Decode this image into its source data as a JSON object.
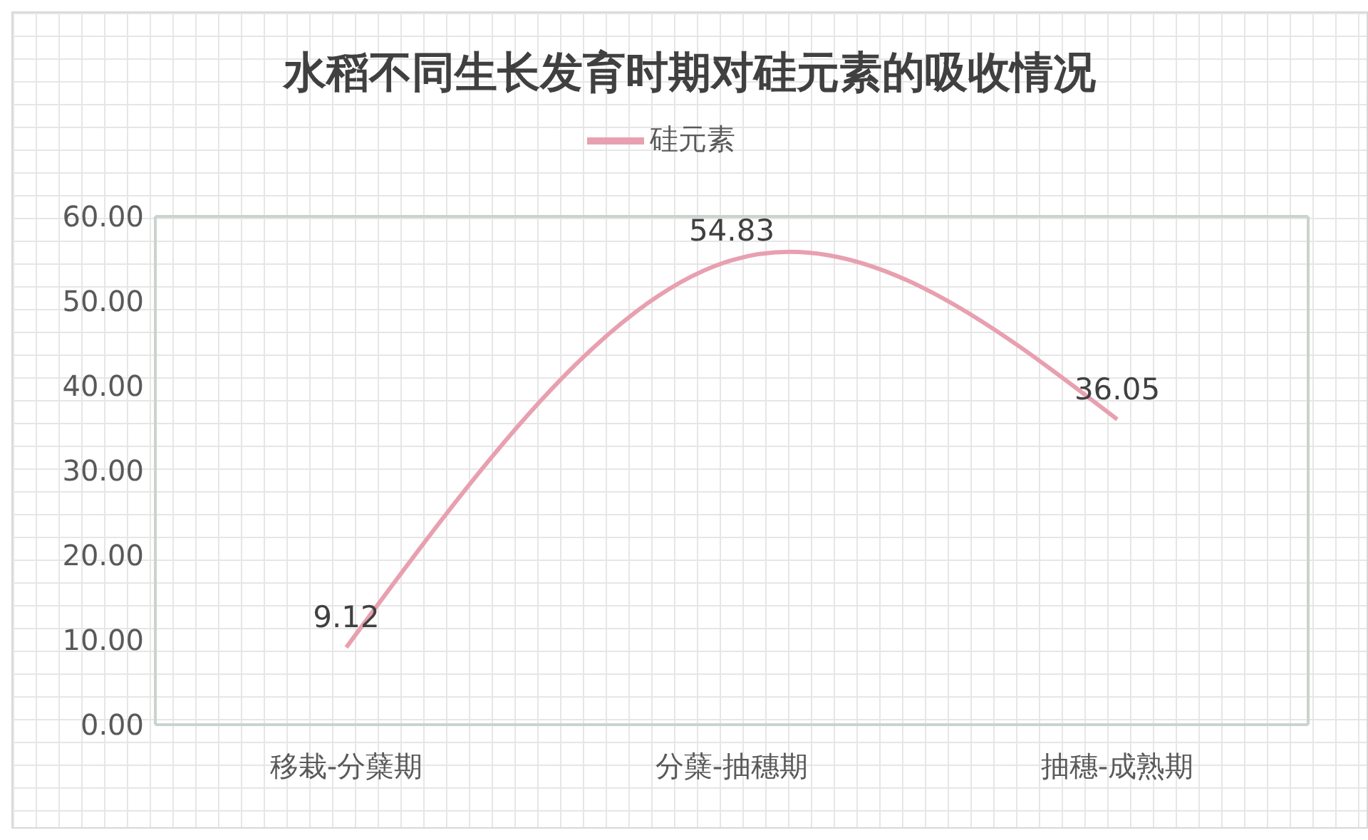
{
  "chart_data": {
    "type": "line",
    "title": "水稻不同生长发育时期对硅元素的吸收情况",
    "categories": [
      "移栽-分蘖期",
      "分蘖-抽穗期",
      "抽穗-成熟期"
    ],
    "series": [
      {
        "name": "硅元素",
        "color": "#e8a0b0",
        "values": [
          9.12,
          54.83,
          36.05
        ]
      }
    ],
    "ylim": [
      0,
      60
    ],
    "yticks": [
      {
        "value": 0,
        "label": "0.00"
      },
      {
        "value": 10,
        "label": "10.00"
      },
      {
        "value": 20,
        "label": "20.00"
      },
      {
        "value": 30,
        "label": "30.00"
      },
      {
        "value": 40,
        "label": "40.00"
      },
      {
        "value": 50,
        "label": "50.00"
      },
      {
        "value": 60,
        "label": "60.00"
      }
    ],
    "grid": false,
    "legend": "top",
    "marker": "none",
    "line_style": "solid",
    "data_labels": true
  }
}
